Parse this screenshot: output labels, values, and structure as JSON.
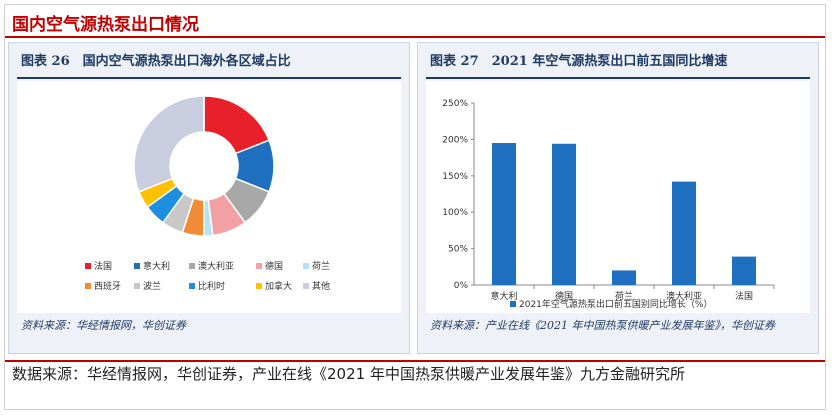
{
  "section_title": "国内空气源热泵出口情况",
  "left_panel": {
    "title": "图表 26　国内空气源热泵出口海外各区域占比",
    "source": "资料来源：华经情报网，华创证券"
  },
  "right_panel": {
    "title": "图表 27　2021 年空气源热泵出口前五国同比增速",
    "source": "资料来源：产业在线《2021 年中国热泵供暖产业发展年鉴》，华创证券"
  },
  "footer": "数据来源：华经情报网，华创证券，产业在线《2021 年中国热泵供暖产业发展年鉴》九方金融研究所",
  "chart_data": [
    {
      "type": "pie",
      "donut": true,
      "legend_position": "bottom",
      "categories": [
        "法国",
        "意大利",
        "澳大利亚",
        "德国",
        "荷兰",
        "西班牙",
        "波兰",
        "比利时",
        "加拿大",
        "其他"
      ],
      "values": [
        19,
        12,
        9,
        8,
        2,
        5,
        5,
        5,
        4,
        31
      ],
      "colors": [
        "#e8202a",
        "#1f6fc0",
        "#a8a8a8",
        "#f2a0a3",
        "#b5e3f4",
        "#f08c36",
        "#c8c8c8",
        "#1d8fe0",
        "#ffc000",
        "#c8cde0"
      ]
    },
    {
      "type": "bar",
      "categories": [
        "意大利",
        "德国",
        "荷兰",
        "澳大利亚",
        "法国"
      ],
      "values": [
        195,
        194,
        20,
        142,
        39
      ],
      "ylim": [
        0,
        250
      ],
      "yticks": [
        "0%",
        "50%",
        "100%",
        "150%",
        "200%",
        "250%"
      ],
      "series_name": "2021年空气源热泵出口前五国别同比增长（%）",
      "color": "#1f6fc0",
      "grid": false,
      "legend_position": "bottom"
    }
  ]
}
